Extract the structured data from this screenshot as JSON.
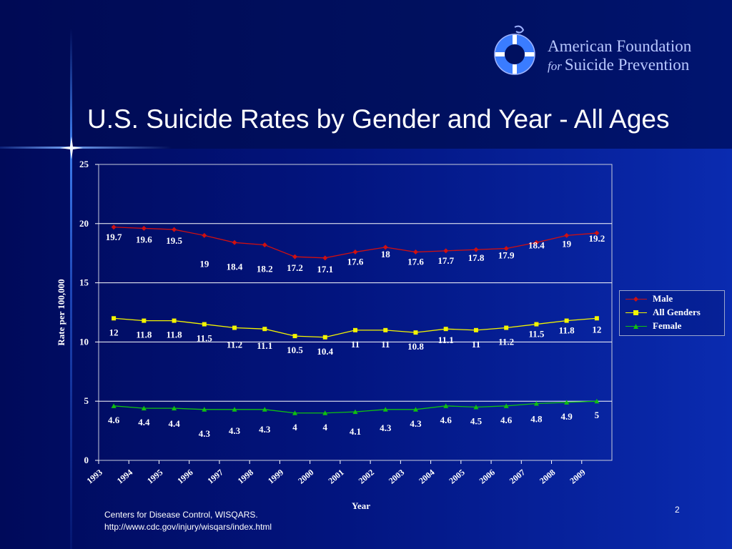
{
  "colors": {
    "background": "#02147e",
    "male": "#d01010",
    "all_genders": "#f4f400",
    "female": "#10c010",
    "text": "#ffffff"
  },
  "logo": {
    "icon": "life-ring-icon",
    "line1": "American Foundation",
    "for": "for",
    "line2": "Suicide Prevention"
  },
  "slide": {
    "title": "U.S. Suicide Rates by Gender and Year - All Ages",
    "source_line1": "Centers for Disease Control, WISQARS.",
    "source_line2": "http://www.cdc.gov/injury/wisqars/index.html",
    "page_number": "2"
  },
  "chart_data": {
    "type": "line",
    "categories": [
      "1993",
      "1994",
      "1995",
      "1996",
      "1997",
      "1998",
      "1999",
      "2000",
      "2001",
      "2002",
      "2003",
      "2004",
      "2005",
      "2006",
      "2007",
      "2008",
      "2009"
    ],
    "series": [
      {
        "name": "Male",
        "marker": "diamond",
        "values": [
          19.7,
          19.6,
          19.5,
          19,
          18.4,
          18.2,
          17.2,
          17.1,
          17.6,
          18,
          17.6,
          17.7,
          17.8,
          17.9,
          18.4,
          19,
          19.2
        ]
      },
      {
        "name": "All Genders",
        "marker": "square",
        "values": [
          12,
          11.8,
          11.8,
          11.5,
          11.2,
          11.1,
          10.5,
          10.4,
          11,
          11,
          10.8,
          11.1,
          11,
          11.2,
          11.5,
          11.8,
          12
        ]
      },
      {
        "name": "Female",
        "marker": "triangle",
        "values": [
          4.6,
          4.4,
          4.4,
          4.3,
          4.3,
          4.3,
          4,
          4,
          4.1,
          4.3,
          4.3,
          4.6,
          4.5,
          4.6,
          4.8,
          4.9,
          5
        ]
      }
    ],
    "xlabel": "Year",
    "ylabel": "Rate per 100,000",
    "ylim": [
      0,
      25
    ],
    "yticks": [
      "0",
      "5",
      "10",
      "15",
      "20",
      "25"
    ],
    "grid": true,
    "legend": "right"
  }
}
